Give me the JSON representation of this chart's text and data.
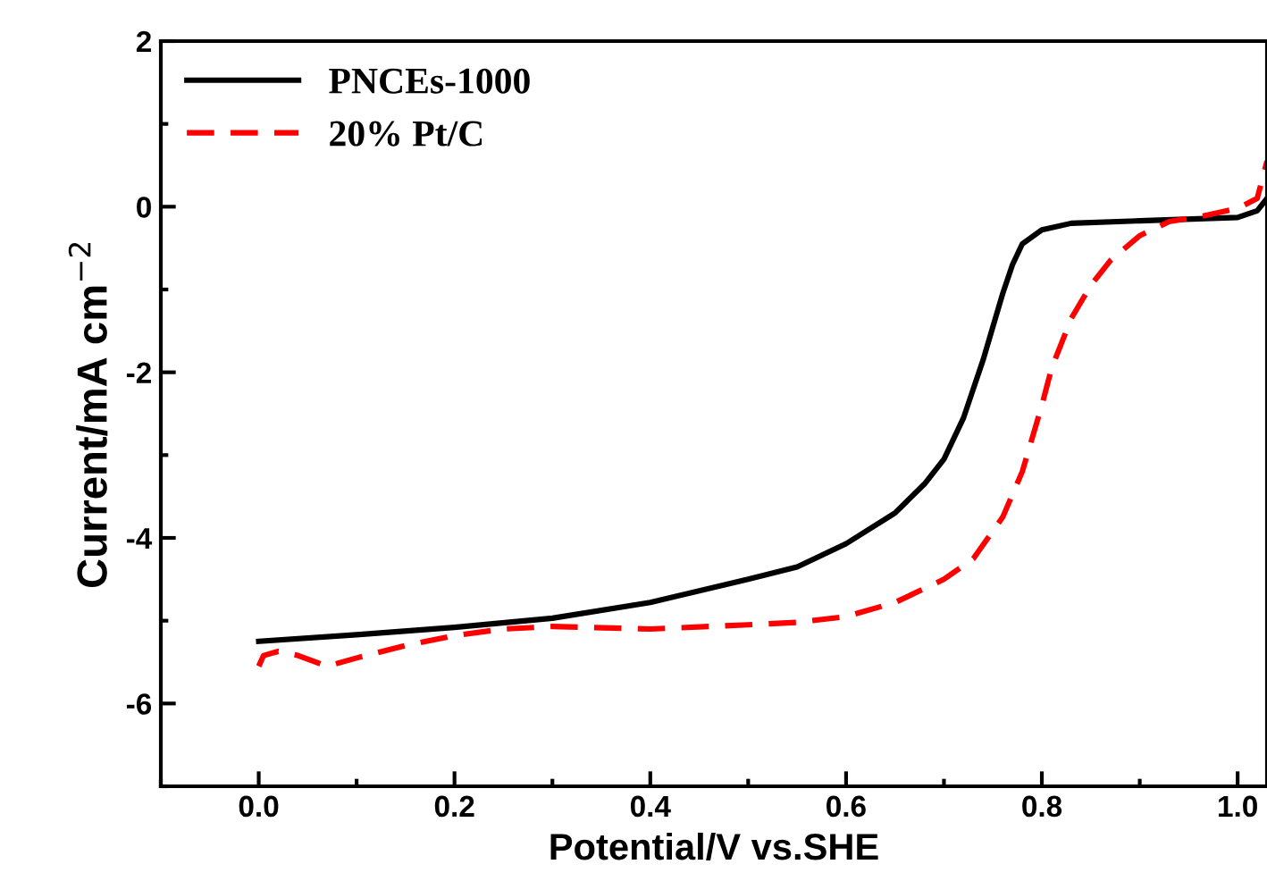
{
  "chart_data": {
    "type": "line",
    "xlabel": "Potential/V vs.SHE",
    "ylabel": "Current/mA cm$^{−2}$",
    "xlim": [
      -0.1,
      1.03
    ],
    "ylim": [
      -7,
      2
    ],
    "xticks": [
      {
        "value": 0,
        "label": "0.0"
      },
      0.2,
      0.4,
      0.6,
      0.8,
      {
        "value": 1,
        "label": "1.0"
      }
    ],
    "yticks": [
      -6,
      -4,
      -2,
      0,
      2
    ],
    "grid": false,
    "legend": "top left",
    "series": [
      {
        "name": "PNCEs-1000",
        "color": "#000000",
        "line_style": "solid",
        "x": [
          0.0,
          0.1,
          0.2,
          0.3,
          0.4,
          0.5,
          0.55,
          0.6,
          0.65,
          0.68,
          0.7,
          0.72,
          0.74,
          0.75,
          0.76,
          0.77,
          0.78,
          0.8,
          0.83,
          0.9,
          1.0,
          1.02,
          1.03
        ],
        "values": [
          -5.25,
          -5.17,
          -5.08,
          -4.97,
          -4.78,
          -4.5,
          -4.35,
          -4.07,
          -3.7,
          -3.35,
          -3.05,
          -2.55,
          -1.85,
          -1.45,
          -1.05,
          -0.7,
          -0.45,
          -0.28,
          -0.2,
          -0.17,
          -0.13,
          -0.05,
          0.1
        ]
      },
      {
        "name": "20% Pt/C",
        "color": "#ff0000",
        "line_style": "dashed",
        "x": [
          0.0,
          0.005,
          0.02,
          0.04,
          0.07,
          0.1,
          0.15,
          0.2,
          0.25,
          0.3,
          0.4,
          0.5,
          0.55,
          0.6,
          0.65,
          0.7,
          0.73,
          0.76,
          0.78,
          0.8,
          0.81,
          0.83,
          0.85,
          0.87,
          0.9,
          0.93,
          0.97,
          1.0,
          1.02,
          1.03
        ],
        "values": [
          -5.55,
          -5.42,
          -5.37,
          -5.42,
          -5.55,
          -5.45,
          -5.3,
          -5.18,
          -5.1,
          -5.07,
          -5.1,
          -5.05,
          -5.02,
          -4.95,
          -4.78,
          -4.5,
          -4.25,
          -3.75,
          -3.2,
          -2.4,
          -1.95,
          -1.35,
          -0.95,
          -0.65,
          -0.35,
          -0.18,
          -0.1,
          -0.02,
          0.1,
          0.55
        ]
      }
    ]
  }
}
